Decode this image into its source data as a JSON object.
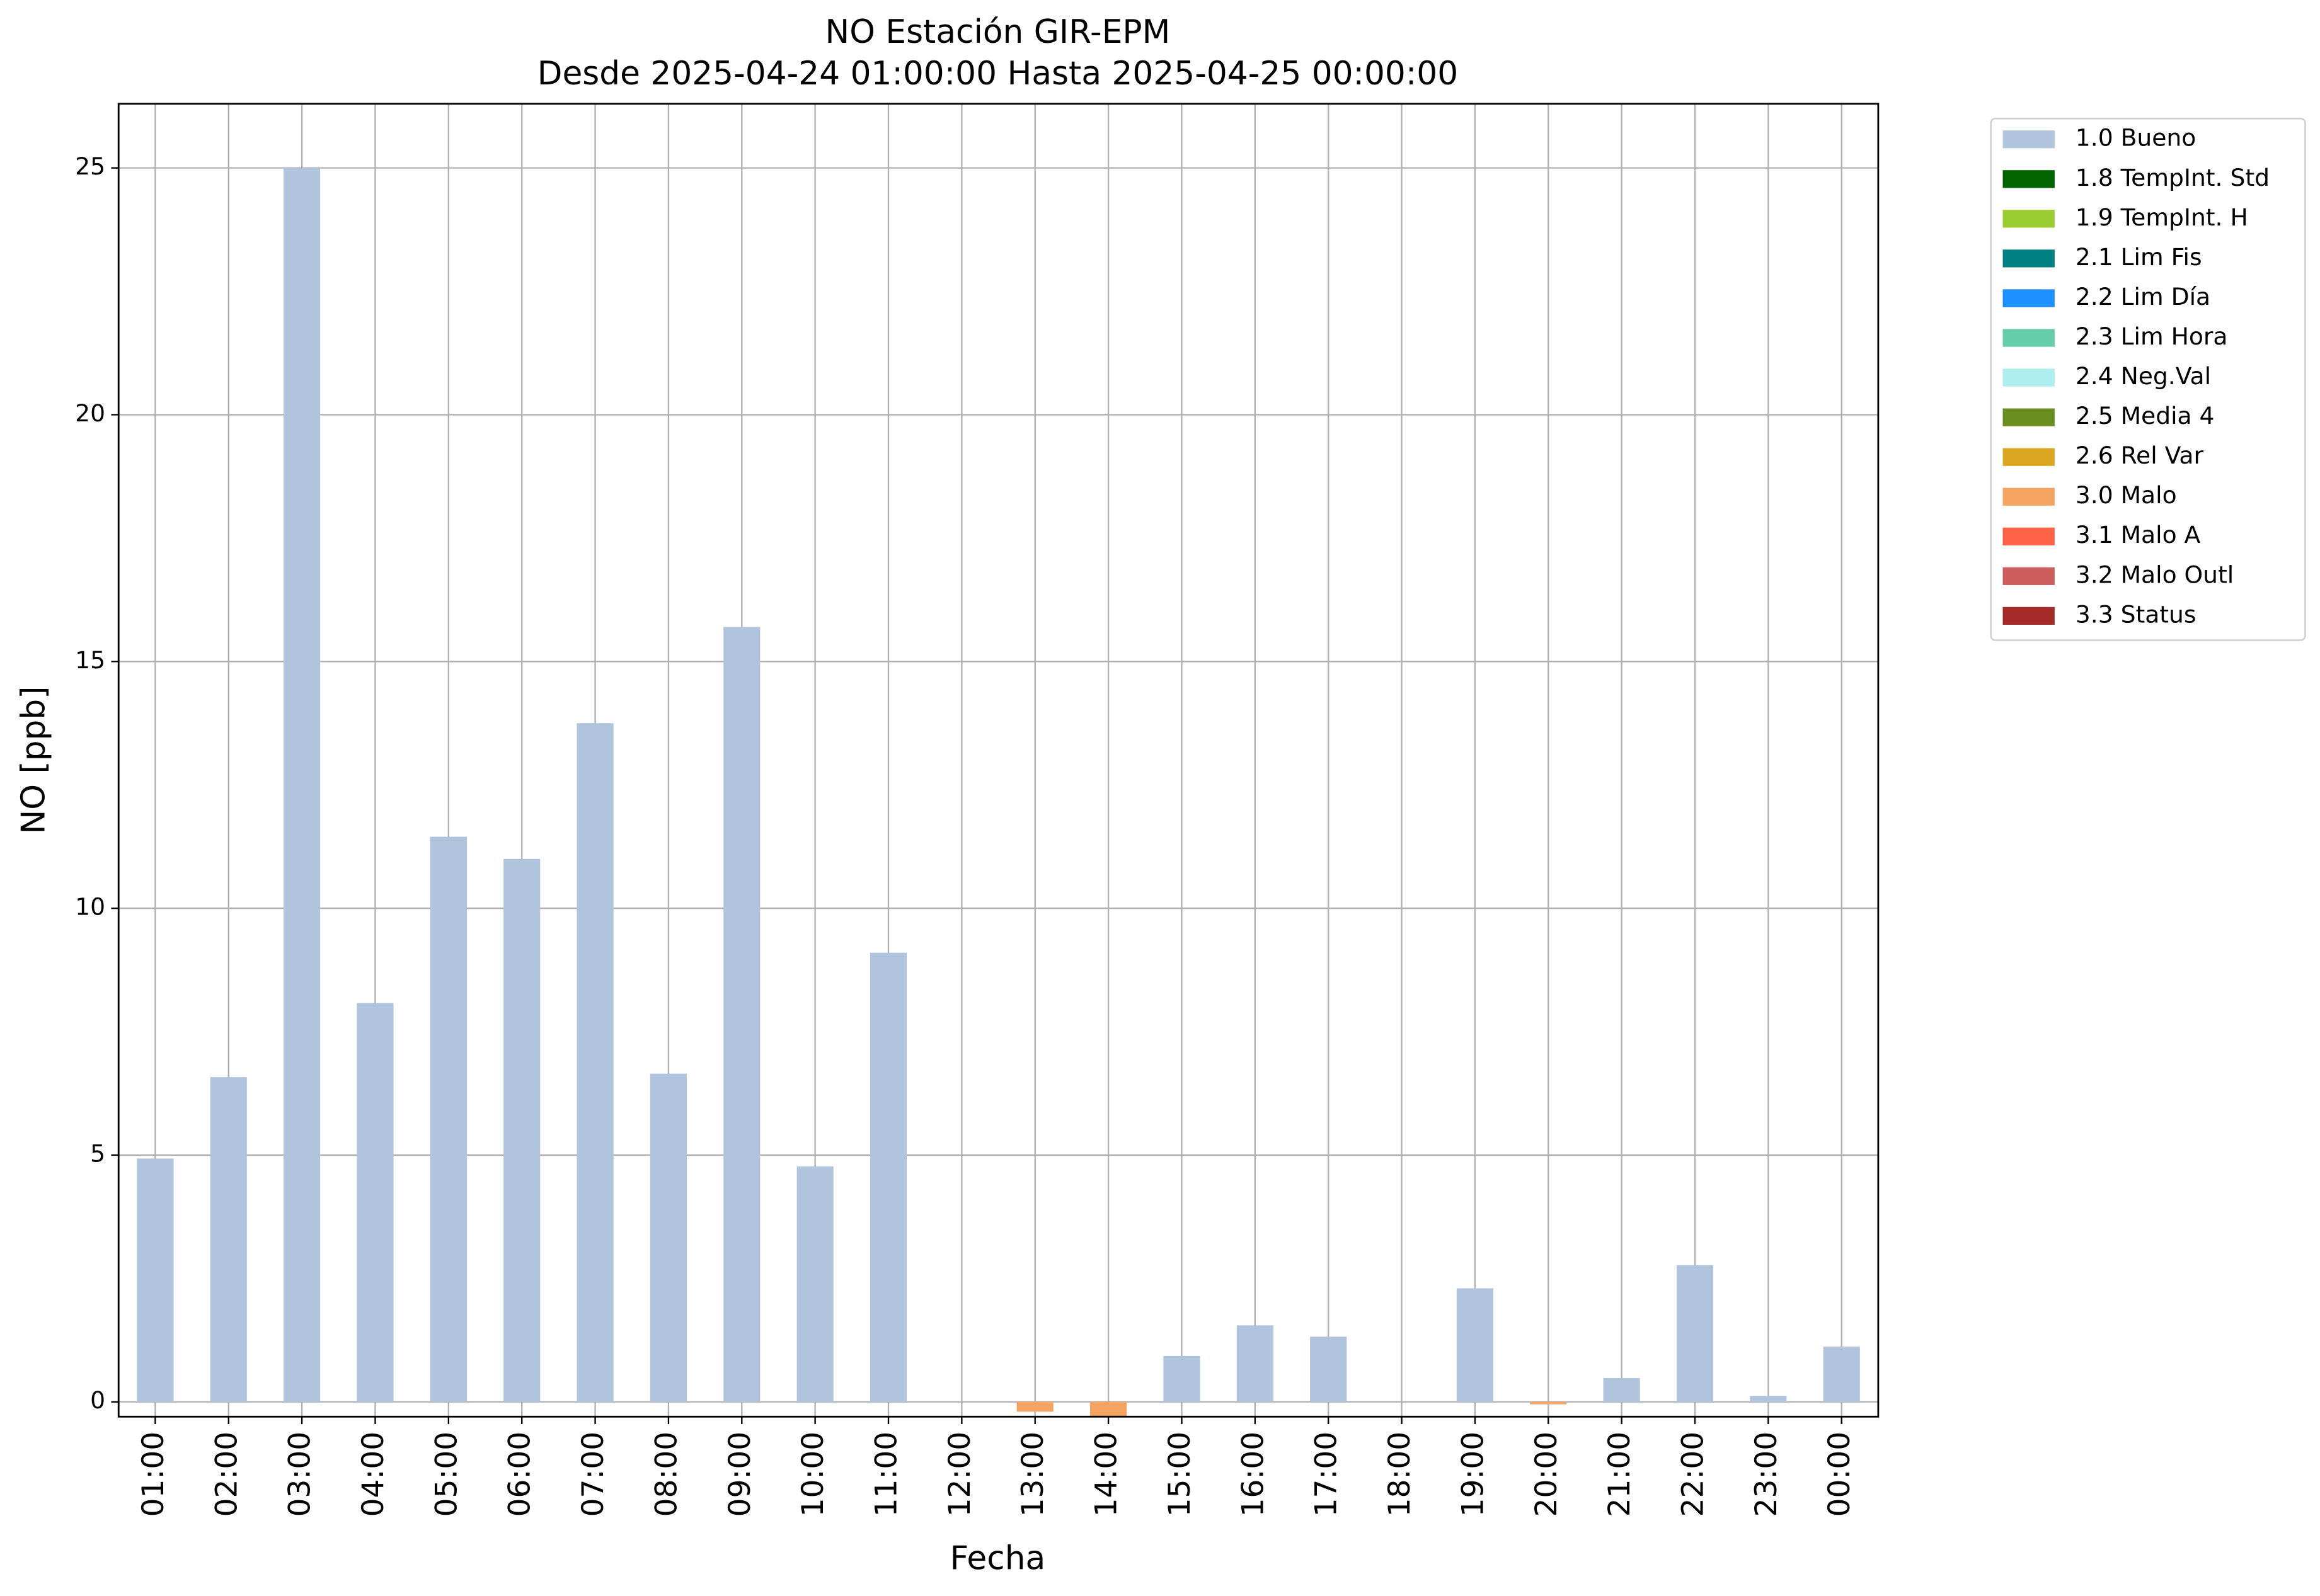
{
  "chart_data": {
    "type": "bar",
    "stacked": true,
    "title": "NO Estación GIR-EPM",
    "subtitle": "Desde 2025-04-24 01:00:00 Hasta 2025-04-25 00:00:00",
    "x_label": "Fecha",
    "y_label": "NO [ppb]",
    "categories": [
      "01:00",
      "02:00",
      "03:00",
      "04:00",
      "05:00",
      "06:00",
      "07:00",
      "08:00",
      "09:00",
      "10:00",
      "11:00",
      "12:00",
      "13:00",
      "14:00",
      "15:00",
      "16:00",
      "17:00",
      "18:00",
      "19:00",
      "20:00",
      "21:00",
      "22:00",
      "23:00",
      "00:00"
    ],
    "series": [
      {
        "name": "1.0 Bueno",
        "color": "#b0c4de",
        "values": [
          4.93,
          6.58,
          25.0,
          8.08,
          11.45,
          11.0,
          13.75,
          6.65,
          15.7,
          4.77,
          9.1,
          null,
          null,
          null,
          0.93,
          1.55,
          1.32,
          null,
          2.3,
          null,
          0.48,
          2.77,
          0.12,
          1.12
        ]
      },
      {
        "name": "1.8 TempInt. Std",
        "color": "#006400",
        "values": [
          null,
          null,
          null,
          null,
          null,
          null,
          null,
          null,
          null,
          null,
          null,
          null,
          null,
          null,
          null,
          null,
          null,
          null,
          null,
          null,
          null,
          null,
          null,
          null
        ]
      },
      {
        "name": "1.9 TempInt. H",
        "color": "#9acd32",
        "values": [
          null,
          null,
          null,
          null,
          null,
          null,
          null,
          null,
          null,
          null,
          null,
          null,
          null,
          null,
          null,
          null,
          null,
          null,
          null,
          null,
          null,
          null,
          null,
          null
        ]
      },
      {
        "name": "2.1 Lim Fis",
        "color": "#008080",
        "values": [
          null,
          null,
          null,
          null,
          null,
          null,
          null,
          null,
          null,
          null,
          null,
          null,
          null,
          null,
          null,
          null,
          null,
          null,
          null,
          null,
          null,
          null,
          null,
          null
        ]
      },
      {
        "name": "2.2 Lim Día",
        "color": "#1e90ff",
        "values": [
          null,
          null,
          null,
          null,
          null,
          null,
          null,
          null,
          null,
          null,
          null,
          null,
          null,
          null,
          null,
          null,
          null,
          null,
          null,
          null,
          null,
          null,
          null,
          null
        ]
      },
      {
        "name": "2.3 Lim Hora",
        "color": "#66cdaa",
        "values": [
          null,
          null,
          null,
          null,
          null,
          null,
          null,
          null,
          null,
          null,
          null,
          null,
          null,
          null,
          null,
          null,
          null,
          null,
          null,
          null,
          null,
          null,
          null,
          null
        ]
      },
      {
        "name": "2.4 Neg.Val",
        "color": "#afeeee",
        "values": [
          null,
          null,
          null,
          null,
          null,
          null,
          null,
          null,
          null,
          null,
          null,
          null,
          null,
          null,
          null,
          null,
          null,
          null,
          null,
          null,
          null,
          null,
          null,
          null
        ]
      },
      {
        "name": "2.5 Media 4",
        "color": "#6b8e23",
        "values": [
          null,
          null,
          null,
          null,
          null,
          null,
          null,
          null,
          null,
          null,
          null,
          null,
          null,
          null,
          null,
          null,
          null,
          null,
          null,
          null,
          null,
          null,
          null,
          null
        ]
      },
      {
        "name": "2.6 Rel Var",
        "color": "#daa520",
        "values": [
          null,
          null,
          null,
          null,
          null,
          null,
          null,
          null,
          null,
          null,
          null,
          null,
          null,
          null,
          null,
          null,
          null,
          null,
          null,
          null,
          null,
          null,
          null,
          null
        ]
      },
      {
        "name": "3.0 Malo",
        "color": "#f4a460",
        "values": [
          null,
          null,
          null,
          null,
          null,
          null,
          null,
          null,
          null,
          null,
          null,
          null,
          -0.2,
          -0.3,
          null,
          null,
          null,
          null,
          null,
          -0.05,
          null,
          null,
          null,
          null
        ]
      },
      {
        "name": "3.1 Malo A",
        "color": "#ff6347",
        "values": [
          null,
          null,
          null,
          null,
          null,
          null,
          null,
          null,
          null,
          null,
          null,
          null,
          null,
          null,
          null,
          null,
          null,
          null,
          null,
          null,
          null,
          null,
          null,
          null
        ]
      },
      {
        "name": "3.2 Malo Outl",
        "color": "#cd5c5c",
        "values": [
          null,
          null,
          null,
          null,
          null,
          null,
          null,
          null,
          null,
          null,
          null,
          null,
          null,
          null,
          null,
          null,
          null,
          null,
          null,
          null,
          null,
          null,
          null,
          null
        ]
      },
      {
        "name": "3.3 Status",
        "color": "#a52a2a",
        "values": [
          null,
          null,
          null,
          null,
          null,
          null,
          null,
          null,
          null,
          null,
          null,
          null,
          null,
          null,
          null,
          null,
          null,
          null,
          null,
          null,
          null,
          null,
          null,
          null
        ]
      }
    ],
    "ylim": [
      -0.3,
      26.3
    ],
    "yticks": [
      0,
      5,
      10,
      15,
      20,
      25
    ],
    "grid": true,
    "legend": "outside right"
  }
}
